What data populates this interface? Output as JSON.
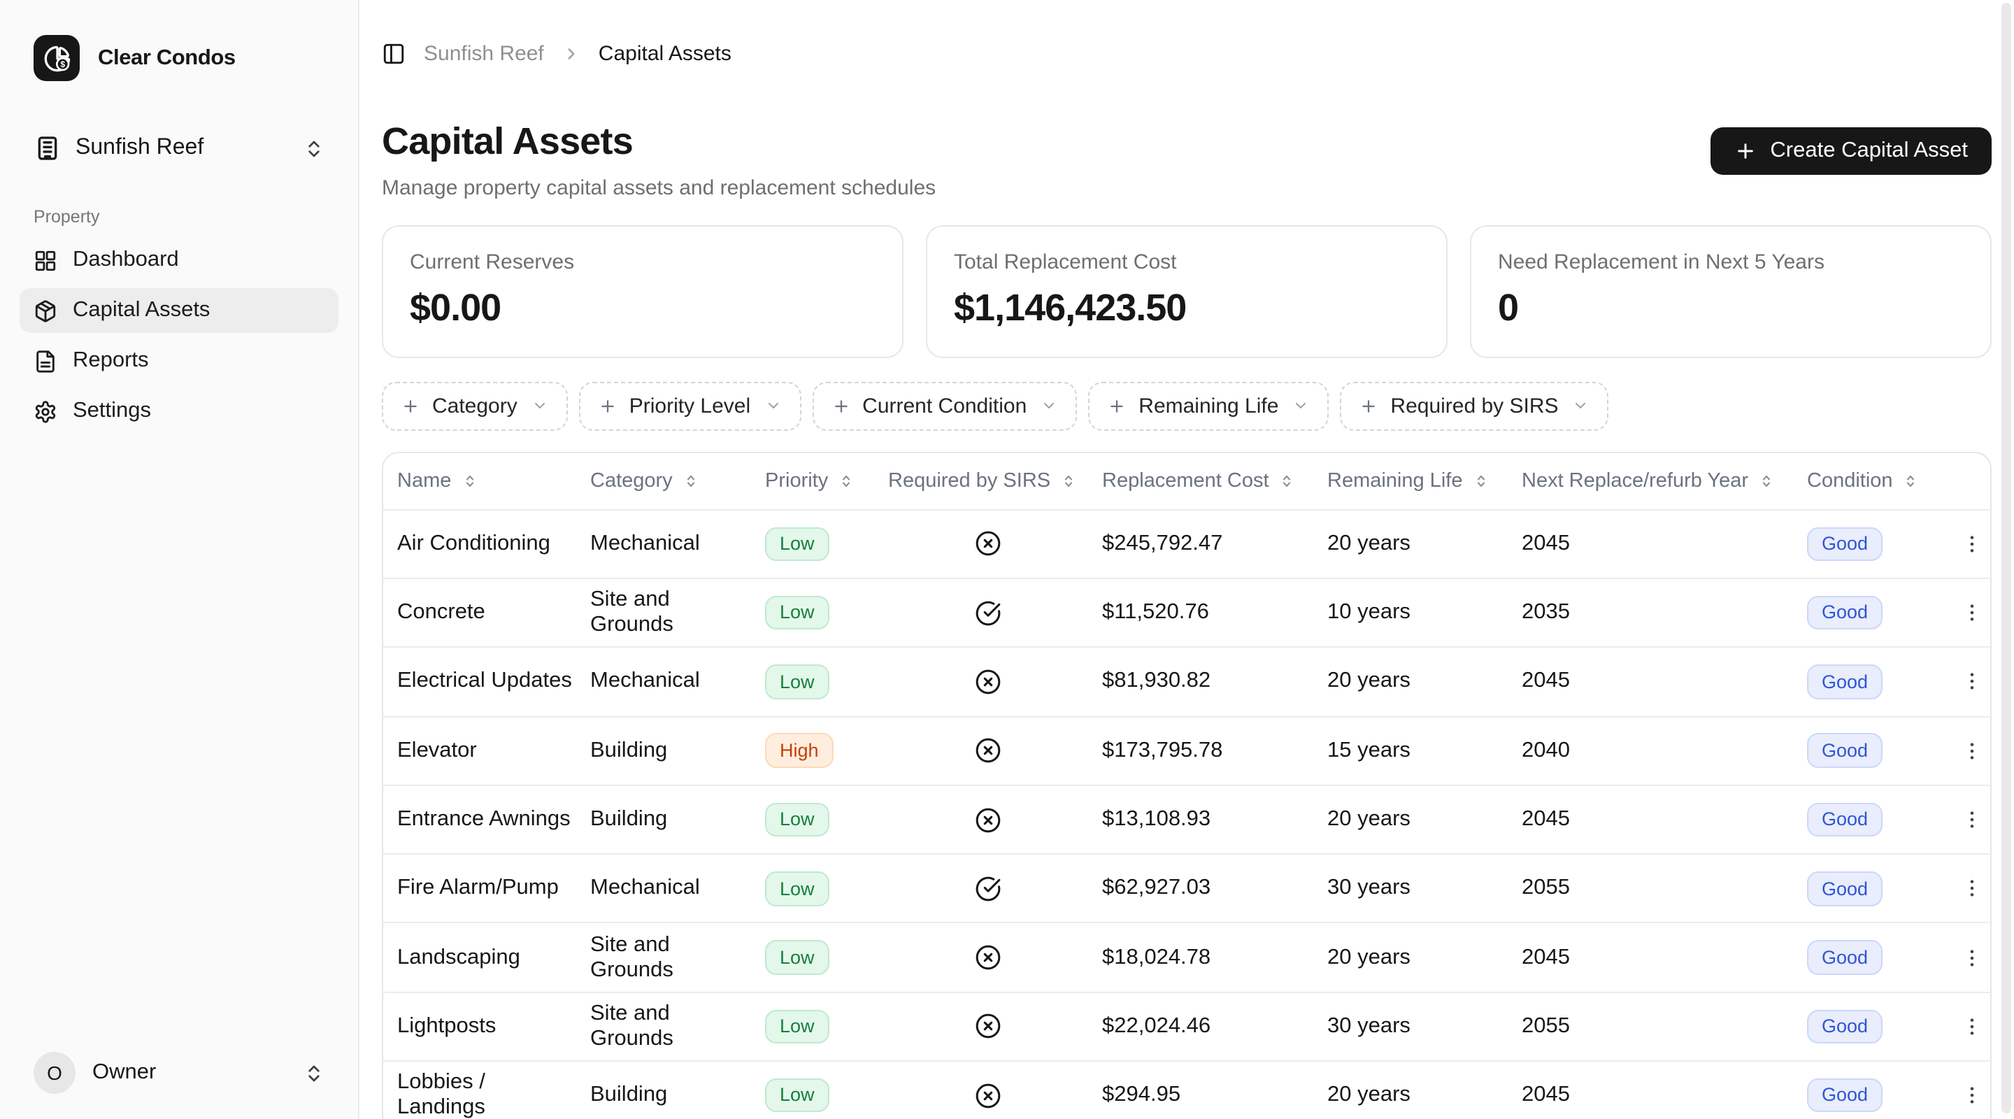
{
  "app": {
    "name": "Clear Condos",
    "logo_icon": "pie-chart-dollar"
  },
  "sidebar": {
    "property_selector": {
      "icon": "building",
      "label": "Sunfish Reef",
      "chevron_icon": "chevrons-up-down"
    },
    "section_label": "Property",
    "items": [
      {
        "label": "Dashboard",
        "icon": "grid",
        "active": false
      },
      {
        "label": "Capital Assets",
        "icon": "package",
        "active": true
      },
      {
        "label": "Reports",
        "icon": "file-text",
        "active": false
      },
      {
        "label": "Settings",
        "icon": "settings",
        "active": false
      }
    ],
    "user": {
      "avatar_initial": "O",
      "label": "Owner",
      "chevron_icon": "chevrons-up-down"
    }
  },
  "breadcrumb": {
    "toggle_icon": "panel-left",
    "parent": "Sunfish Reef",
    "separator_icon": "chevron-right",
    "current": "Capital Assets"
  },
  "page": {
    "title": "Capital Assets",
    "subtitle": "Manage property capital assets and replacement schedules",
    "create_button_label": "Create Capital Asset",
    "create_button_icon": "plus"
  },
  "stats": [
    {
      "label": "Current Reserves",
      "value": "$0.00"
    },
    {
      "label": "Total Replacement Cost",
      "value": "$1,146,423.50"
    },
    {
      "label": "Need Replacement in Next 5 Years",
      "value": "0"
    }
  ],
  "filters": {
    "plus_icon": "plus",
    "chevron_icon": "chevron-down",
    "chips": [
      {
        "label": "Category"
      },
      {
        "label": "Priority Level"
      },
      {
        "label": "Current Condition"
      },
      {
        "label": "Remaining Life"
      },
      {
        "label": "Required by SIRS"
      }
    ]
  },
  "table": {
    "columns": [
      "Name",
      "Category",
      "Priority",
      "Required by SIRS",
      "Replacement Cost",
      "Remaining Life",
      "Next Replace/refurb Year",
      "Condition"
    ],
    "sort_icon": "chevrons-up-down",
    "row_menu_icon": "kebab",
    "sirs_true_icon": "circle-check",
    "sirs_false_icon": "circle-x",
    "rows": [
      {
        "name": "Air Conditioning",
        "category": "Mechanical",
        "priority": "Low",
        "required_by_sirs": false,
        "replacement_cost": "$245,792.47",
        "remaining_life": "20 years",
        "next_year": "2045",
        "condition": "Good"
      },
      {
        "name": "Concrete",
        "category": "Site and Grounds",
        "priority": "Low",
        "required_by_sirs": true,
        "replacement_cost": "$11,520.76",
        "remaining_life": "10 years",
        "next_year": "2035",
        "condition": "Good"
      },
      {
        "name": "Electrical Updates",
        "category": "Mechanical",
        "priority": "Low",
        "required_by_sirs": false,
        "replacement_cost": "$81,930.82",
        "remaining_life": "20 years",
        "next_year": "2045",
        "condition": "Good"
      },
      {
        "name": "Elevator",
        "category": "Building",
        "priority": "High",
        "required_by_sirs": false,
        "replacement_cost": "$173,795.78",
        "remaining_life": "15 years",
        "next_year": "2040",
        "condition": "Good"
      },
      {
        "name": "Entrance Awnings",
        "category": "Building",
        "priority": "Low",
        "required_by_sirs": false,
        "replacement_cost": "$13,108.93",
        "remaining_life": "20 years",
        "next_year": "2045",
        "condition": "Good"
      },
      {
        "name": "Fire Alarm/Pump",
        "category": "Mechanical",
        "priority": "Low",
        "required_by_sirs": true,
        "replacement_cost": "$62,927.03",
        "remaining_life": "30 years",
        "next_year": "2055",
        "condition": "Good"
      },
      {
        "name": "Landscaping",
        "category": "Site and Grounds",
        "priority": "Low",
        "required_by_sirs": false,
        "replacement_cost": "$18,024.78",
        "remaining_life": "20 years",
        "next_year": "2045",
        "condition": "Good"
      },
      {
        "name": "Lightposts",
        "category": "Site and Grounds",
        "priority": "Low",
        "required_by_sirs": false,
        "replacement_cost": "$22,024.46",
        "remaining_life": "30 years",
        "next_year": "2055",
        "condition": "Good"
      },
      {
        "name": "Lobbies / Landings",
        "category": "Building",
        "priority": "Low",
        "required_by_sirs": false,
        "replacement_cost": "$294.95",
        "remaining_life": "20 years",
        "next_year": "2045",
        "condition": "Good"
      }
    ]
  },
  "colors": {
    "accent_dark": "#171717",
    "sidebar_bg": "#fafafa",
    "card_border": "#e7e7e7",
    "priority_low_text": "#15803d",
    "priority_low_bg": "#e4f7eb",
    "priority_high_text": "#c2410c",
    "priority_high_bg": "#ffeedd",
    "condition_good_text": "#2f55d4",
    "condition_good_bg": "#e9edfc"
  }
}
